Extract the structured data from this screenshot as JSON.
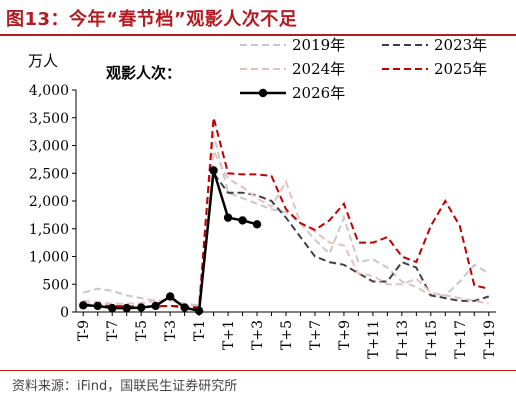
{
  "figure": {
    "title": "图13：今年“春节档”观影人次不足",
    "source": "资料来源：iFind，国联民生证券研究所"
  },
  "chart_data": {
    "type": "line",
    "title": "观影人次：",
    "ylabel": "万人",
    "xlabel": "",
    "ylim": [
      0,
      4000
    ],
    "yticks": [
      0,
      500,
      1000,
      1500,
      2000,
      2500,
      3000,
      3500,
      4000
    ],
    "ytick_labels": [
      "0",
      "500",
      "1,000",
      "1,500",
      "2,000",
      "2,500",
      "3,000",
      "3,500",
      "4,000"
    ],
    "categories": [
      "T-9",
      "T-8",
      "T-7",
      "T-6",
      "T-5",
      "T-4",
      "T-3",
      "T-2",
      "T-1",
      "T",
      "T+1",
      "T+2",
      "T+3",
      "T+4",
      "T+5",
      "T+6",
      "T+7",
      "T+8",
      "T+9",
      "T+10",
      "T+11",
      "T+12",
      "T+13",
      "T+14",
      "T+15",
      "T+16",
      "T+17",
      "T+18",
      "T+19"
    ],
    "xtick_labels": [
      "T-9",
      "T-7",
      "T-5",
      "T-3",
      "T-1",
      "T+1",
      "T+3",
      "T+5",
      "T+7",
      "T+9",
      "T+11",
      "T+13",
      "T+15",
      "T+17",
      "T+19"
    ],
    "grid": false,
    "legend_position": "top",
    "series": [
      {
        "name": "2019年",
        "color": "#c8c8c8",
        "dash": "dashed",
        "values": [
          350,
          420,
          380,
          300,
          250,
          200,
          220,
          150,
          120,
          3200,
          2150,
          2050,
          1950,
          1850,
          1800,
          1600,
          1300,
          1050,
          1700,
          900,
          950,
          800,
          550,
          450,
          300,
          300,
          550,
          850,
          700
        ]
      },
      {
        "name": "2023年",
        "color": "#404040",
        "dash": "dashed",
        "values": [
          140,
          120,
          110,
          100,
          100,
          100,
          110,
          80,
          60,
          2500,
          2150,
          2150,
          2100,
          2000,
          1700,
          1350,
          1000,
          900,
          850,
          700,
          550,
          550,
          900,
          800,
          300,
          250,
          200,
          200,
          280
        ]
      },
      {
        "name": "2024年",
        "color": "#e8bfbf",
        "dash": "dashed",
        "values": [
          200,
          180,
          150,
          150,
          160,
          200,
          220,
          120,
          100,
          2900,
          2400,
          2250,
          2050,
          1900,
          2350,
          1600,
          1450,
          1250,
          1200,
          700,
          650,
          500,
          500,
          600,
          350,
          300,
          250,
          200,
          150
        ]
      },
      {
        "name": "2025年",
        "color": "#c00000",
        "dash": "dashed",
        "values": [
          120,
          110,
          100,
          90,
          90,
          100,
          110,
          100,
          80,
          3500,
          2500,
          2480,
          2480,
          2450,
          1850,
          1600,
          1480,
          1650,
          1950,
          1250,
          1250,
          1350,
          1000,
          900,
          1550,
          2000,
          1550,
          480,
          420
        ]
      },
      {
        "name": "2026年",
        "color": "#000000",
        "dash": "solid",
        "marker": "circle",
        "values": [
          120,
          110,
          70,
          70,
          80,
          110,
          280,
          80,
          20,
          2550,
          1700,
          1650,
          1580,
          null,
          null,
          null,
          null,
          null,
          null,
          null,
          null,
          null,
          null,
          null,
          null,
          null,
          null,
          null,
          null
        ]
      }
    ]
  }
}
